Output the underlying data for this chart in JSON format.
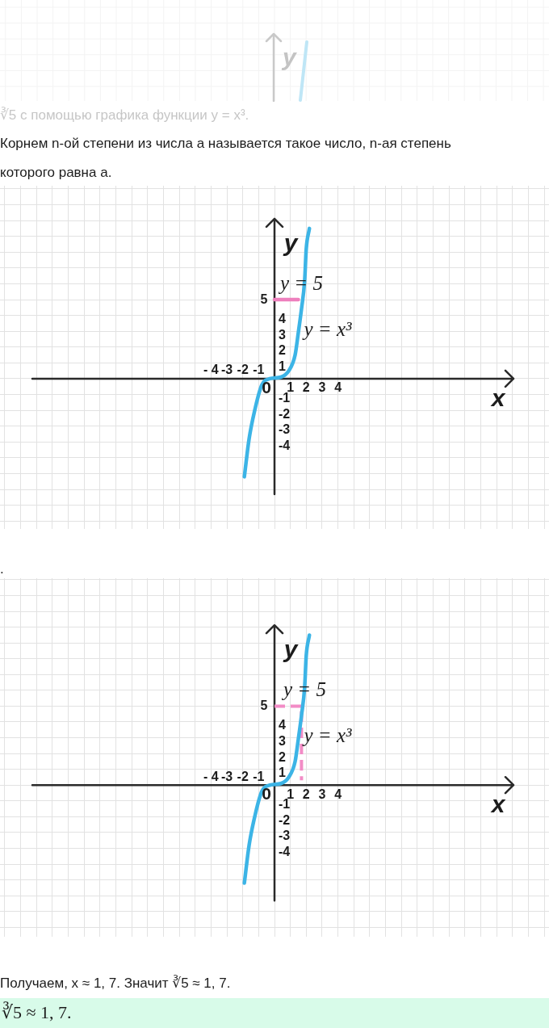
{
  "chart_data": [
    {
      "type": "line",
      "title": "∛5 с помощью графика функции y = x³.",
      "subtitle": "Корнем n-ой степени из числа a называется такое число, n-ая степень которого равна a.",
      "xlabel": "x",
      "ylabel": "y",
      "xlim": [
        -17.3,
        17.3
      ],
      "ylim": [
        -9.5,
        12.2
      ],
      "xticks": [
        {
          "value": -17,
          "label": null
        },
        {
          "value": -16,
          "label": null
        },
        {
          "value": -15,
          "label": null
        },
        {
          "value": -14,
          "label": null
        },
        {
          "value": -13,
          "label": null
        },
        {
          "value": -12,
          "label": null
        },
        {
          "value": -11,
          "label": null
        },
        {
          "value": -10,
          "label": null
        },
        {
          "value": -9,
          "label": null
        },
        {
          "value": -8,
          "label": null
        },
        {
          "value": -7,
          "label": null
        },
        {
          "value": -6,
          "label": null
        },
        {
          "value": -5,
          "label": null
        },
        {
          "value": -4,
          "label": null
        },
        {
          "value": -3,
          "label": null
        },
        {
          "value": -2,
          "label": null
        },
        {
          "value": -1,
          "label": null
        },
        0,
        1,
        2,
        3,
        4,
        {
          "value": 5,
          "label": null
        },
        {
          "value": 6,
          "label": null
        },
        {
          "value": 7,
          "label": null
        },
        {
          "value": 8,
          "label": null
        },
        {
          "value": 9,
          "label": null
        },
        {
          "value": 10,
          "label": null
        },
        {
          "value": 11,
          "label": null
        },
        {
          "value": 12,
          "label": null
        },
        {
          "value": 13,
          "label": null
        },
        {
          "value": 14,
          "label": null
        },
        {
          "value": 15,
          "label": null
        },
        {
          "value": 16,
          "label": null
        },
        {
          "value": 17,
          "label": null
        }
      ],
      "x2lim": [
        -17.3,
        17.3
      ],
      "x2ticks": [
        {
          "value": -4,
          "label": "- 4"
        },
        -3,
        -2,
        -1
      ],
      "yticks": [
        {
          "value": -9,
          "label": null
        },
        {
          "value": -8,
          "label": null
        },
        {
          "value": -7,
          "label": null
        },
        {
          "value": -6,
          "label": null
        },
        {
          "value": -5,
          "label": null
        },
        -4,
        -3,
        -2,
        -1,
        {
          "value": 0,
          "label": null
        },
        1,
        2,
        3,
        4,
        {
          "value": 5,
          "label": null
        },
        {
          "value": 6,
          "label": null
        },
        {
          "value": 7,
          "label": null
        },
        {
          "value": 8,
          "label": null
        },
        {
          "value": 9,
          "label": null
        },
        {
          "value": 10,
          "label": null
        },
        {
          "value": 11,
          "label": null
        },
        {
          "value": 12,
          "label": null
        }
      ],
      "grid": true,
      "series": [
        {
          "name": "y = x³",
          "color": "#3cb4e6",
          "x": [
            -1.9,
            -1.6,
            -1.2,
            -0.8,
            -0.3,
            0.4,
            0.9,
            1.3,
            1.5,
            1.7,
            1.9,
            2,
            2.2
          ],
          "values": [
            -6.2,
            -3.8,
            -1.8,
            -0.4,
            0,
            0.1,
            0.5,
            1.5,
            2.9,
            4.4,
            6.2,
            8.2,
            9.5
          ]
        },
        {
          "name": "y = 5",
          "color": "#ee7fbd",
          "x": [
            0,
            1.5
          ],
          "values": [
            5,
            5
          ]
        }
      ],
      "annotations": [
        "y",
        "5"
      ]
    },
    {
      "type": "line",
      "xlabel": "x",
      "ylabel": "y",
      "xlim": [
        -17.3,
        17.3
      ],
      "ylim": [
        -9.6,
        13.1
      ],
      "xticks": [
        {
          "value": -17,
          "label": null
        },
        {
          "value": -16,
          "label": null
        },
        {
          "value": -15,
          "label": null
        },
        {
          "value": -14,
          "label": null
        },
        {
          "value": -13,
          "label": null
        },
        {
          "value": -12,
          "label": null
        },
        {
          "value": -11,
          "label": null
        },
        {
          "value": -10,
          "label": null
        },
        {
          "value": -9,
          "label": null
        },
        {
          "value": -8,
          "label": null
        },
        {
          "value": -7,
          "label": null
        },
        {
          "value": -6,
          "label": null
        },
        {
          "value": -5,
          "label": null
        },
        {
          "value": -4,
          "label": null
        },
        {
          "value": -3,
          "label": null
        },
        {
          "value": -2,
          "label": null
        },
        {
          "value": -1,
          "label": null
        },
        0,
        1,
        2,
        3,
        4,
        {
          "value": 5,
          "label": null
        },
        {
          "value": 6,
          "label": null
        },
        {
          "value": 7,
          "label": null
        },
        {
          "value": 8,
          "label": null
        },
        {
          "value": 9,
          "label": null
        },
        {
          "value": 10,
          "label": null
        },
        {
          "value": 11,
          "label": null
        },
        {
          "value": 12,
          "label": null
        },
        {
          "value": 13,
          "label": null
        },
        {
          "value": 14,
          "label": null
        },
        {
          "value": 15,
          "label": null
        },
        {
          "value": 16,
          "label": null
        },
        {
          "value": 17,
          "label": null
        }
      ],
      "x2lim": [
        -17.3,
        17.3
      ],
      "x2ticks": [
        {
          "value": -4,
          "label": "- 4"
        },
        -3,
        -2,
        -1
      ],
      "yticks": [
        {
          "value": -9,
          "label": null
        },
        {
          "value": -8,
          "label": null
        },
        {
          "value": -7,
          "label": null
        },
        {
          "value": -6,
          "label": null
        },
        {
          "value": -5,
          "label": null
        },
        -4,
        -3,
        -2,
        -1,
        {
          "value": 0,
          "label": null
        },
        1,
        2,
        3,
        4,
        {
          "value": 5,
          "label": null
        },
        {
          "value": 6,
          "label": null
        },
        {
          "value": 7,
          "label": null
        },
        {
          "value": 8,
          "label": null
        },
        {
          "value": 9,
          "label": null
        },
        {
          "value": 10,
          "label": null
        },
        {
          "value": 11,
          "label": null
        },
        {
          "value": 12,
          "label": null
        },
        {
          "value": 13,
          "label": null
        }
      ],
      "grid": true,
      "series": [
        {
          "name": "y = x³",
          "color": "#3cb4e6",
          "x": [
            -1.9,
            -1.6,
            -1.2,
            -0.8,
            -0.3,
            0.4,
            0.9,
            1.3,
            1.5,
            1.7,
            1.9,
            2,
            2.2
          ],
          "values": [
            -6.2,
            -3.8,
            -1.8,
            -0.4,
            0,
            0.1,
            0.5,
            1.5,
            2.9,
            4.4,
            6.2,
            8.2,
            9.5
          ]
        },
        {
          "name": "y = 5",
          "color": "#f28cc6",
          "x": [
            0,
            1.7,
            1.7
          ],
          "values": [
            5,
            5,
            0.3
          ],
          "line_style": "dashed"
        }
      ],
      "annotations": [
        ".",
        "5",
        "Получаем, x ≈ 1, 7. Значит ∛5 ≈ 1, 7.",
        "∛5 ≈ 1, 7."
      ]
    }
  ]
}
